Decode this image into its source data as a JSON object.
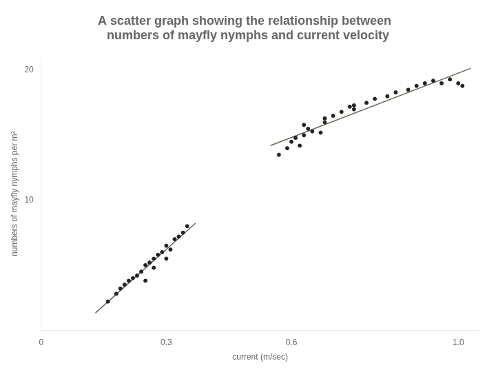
{
  "chart_data": {
    "type": "scatter",
    "title": [
      "A scatter graph showing the relationship between",
      "  numbers of mayfly nymphs and current velocity"
    ],
    "x_label": "current (m/sec)",
    "y_label": "numbers of mayfly nymphs per m²",
    "xlim": [
      0,
      1.05
    ],
    "ylim": [
      0,
      21
    ],
    "xticks": [
      0,
      0.3,
      0.6,
      {
        "value": 1.0,
        "label": "1.0"
      }
    ],
    "yticks": [
      10,
      20
    ],
    "grid": false,
    "series": [
      {
        "type": "scatter",
        "color": "#222222",
        "x": [
          0.16,
          0.18,
          0.19,
          0.2,
          0.21,
          0.22,
          0.23,
          0.24,
          0.25,
          0.26,
          0.27,
          0.28,
          0.29,
          0.3,
          0.31,
          0.32,
          0.33,
          0.34,
          0.35,
          0.3,
          0.25,
          0.27
        ],
        "values": [
          2.2,
          2.8,
          3.2,
          3.5,
          3.8,
          4.0,
          4.2,
          4.5,
          5.0,
          5.2,
          5.5,
          5.8,
          6.0,
          6.5,
          6.2,
          7.0,
          7.2,
          7.5,
          8.0,
          5.5,
          3.8,
          4.8
        ]
      },
      {
        "type": "scatter",
        "color": "#222222",
        "x": [
          0.57,
          0.59,
          0.6,
          0.61,
          0.62,
          0.63,
          0.64,
          0.65,
          0.67,
          0.68,
          0.7,
          0.72,
          0.74,
          0.75,
          0.78,
          0.8,
          0.83,
          0.85,
          0.88,
          0.9,
          0.92,
          0.94,
          0.96,
          0.98,
          1.0,
          1.01,
          0.63,
          0.68,
          0.75
        ],
        "values": [
          13.5,
          14.0,
          14.5,
          14.8,
          14.2,
          15.0,
          15.5,
          15.3,
          15.2,
          16.0,
          16.5,
          16.8,
          17.2,
          17.0,
          17.5,
          17.8,
          18.0,
          18.3,
          18.5,
          18.8,
          19.0,
          19.2,
          19.0,
          19.3,
          19.0,
          18.8,
          15.8,
          16.3,
          17.3
        ]
      },
      {
        "type": "line",
        "color": "#666655",
        "x": [
          0.13,
          0.37
        ],
        "values": [
          1.315,
          8.231
        ]
      },
      {
        "type": "line",
        "color": "#666655",
        "x": [
          0.55,
          1.03
        ],
        "values": [
          14.213,
          20.158
        ]
      }
    ]
  }
}
